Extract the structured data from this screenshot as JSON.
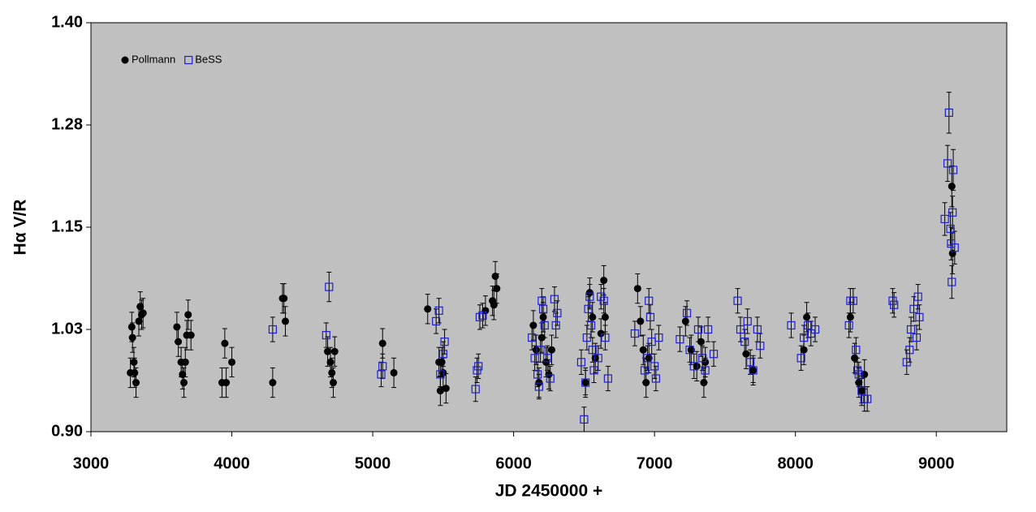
{
  "chart_data": {
    "type": "scatter",
    "xlabel": "JD 2450000 +",
    "ylabel": "Hα V/R",
    "xlim": [
      3000,
      9500
    ],
    "xticks": [
      3000,
      4000,
      5000,
      6000,
      7000,
      8000,
      9000
    ],
    "ylim": [
      0.9,
      1.4
    ],
    "yticks": [
      {
        "value": 0.9,
        "label": "0.90"
      },
      {
        "value": 1.025,
        "label": "1.03"
      },
      1.15,
      {
        "value": 1.275,
        "label": "1.28"
      },
      {
        "value": 1.4,
        "label": "1.40"
      }
    ],
    "legend": "upper left",
    "background": "#c0c0c0",
    "series": [
      {
        "name": "Pollmann",
        "color": "#000000",
        "marker": "filled-circle",
        "x": [
          3280,
          3290,
          3295,
          3305,
          3310,
          3320,
          3340,
          3350,
          3360,
          3370,
          3610,
          3620,
          3640,
          3650,
          3660,
          3670,
          3680,
          3690,
          3710,
          3930,
          3950,
          3960,
          4000,
          4290,
          4360,
          4370,
          4380,
          4680,
          4700,
          4710,
          4720,
          4730,
          5070,
          5150,
          5390,
          5470,
          5480,
          5490,
          5500,
          5520,
          5800,
          5850,
          5860,
          5870,
          5880,
          6140,
          6160,
          6180,
          6200,
          6210,
          6230,
          6250,
          6270,
          6510,
          6540,
          6560,
          6580,
          6620,
          6640,
          6650,
          6880,
          6900,
          6920,
          6940,
          6960,
          7220,
          7260,
          7300,
          7330,
          7350,
          7360,
          7650,
          7700,
          8060,
          8080,
          8390,
          8420,
          8450,
          8470,
          8490,
          9110,
          9115
        ],
        "values": [
          0.972,
          1.028,
          1.015,
          0.985,
          0.972,
          0.96,
          1.035,
          1.053,
          1.043,
          1.045,
          1.028,
          1.01,
          0.985,
          0.97,
          0.96,
          0.985,
          1.018,
          1.043,
          1.018,
          0.96,
          1.008,
          0.96,
          0.985,
          0.96,
          1.063,
          1.063,
          1.035,
          0.998,
          0.985,
          0.972,
          0.96,
          0.998,
          1.008,
          0.972,
          1.05,
          0.985,
          0.95,
          0.985,
          0.972,
          0.953,
          1.048,
          1.06,
          1.055,
          1.09,
          1.075,
          1.03,
          1.0,
          0.96,
          1.015,
          1.04,
          0.985,
          0.97,
          1.0,
          0.96,
          1.07,
          1.04,
          0.99,
          1.02,
          1.085,
          1.04,
          1.075,
          1.035,
          1.0,
          0.96,
          0.99,
          1.035,
          1.0,
          0.98,
          1.01,
          0.96,
          0.985,
          0.995,
          0.975,
          1.0,
          1.04,
          1.04,
          0.99,
          0.96,
          0.95,
          0.97,
          1.2,
          1.118
        ],
        "errors": [
          0.018,
          0.018,
          0.018,
          0.018,
          0.018,
          0.018,
          0.018,
          0.018,
          0.018,
          0.018,
          0.018,
          0.018,
          0.018,
          0.018,
          0.018,
          0.018,
          0.018,
          0.018,
          0.018,
          0.018,
          0.018,
          0.018,
          0.018,
          0.018,
          0.018,
          0.018,
          0.018,
          0.018,
          0.018,
          0.018,
          0.018,
          0.018,
          0.018,
          0.018,
          0.018,
          0.018,
          0.018,
          0.018,
          0.018,
          0.018,
          0.018,
          0.018,
          0.018,
          0.018,
          0.018,
          0.018,
          0.018,
          0.018,
          0.018,
          0.018,
          0.018,
          0.018,
          0.018,
          0.018,
          0.018,
          0.018,
          0.018,
          0.018,
          0.018,
          0.018,
          0.018,
          0.018,
          0.018,
          0.018,
          0.018,
          0.018,
          0.018,
          0.018,
          0.018,
          0.018,
          0.018,
          0.018,
          0.018,
          0.018,
          0.018,
          0.018,
          0.018,
          0.018,
          0.018,
          0.018,
          0.025,
          0.025
        ]
      },
      {
        "name": "BeSS",
        "color": "#1f1fd0",
        "marker": "open-square",
        "x": [
          4290,
          4670,
          4690,
          5060,
          5070,
          5450,
          5470,
          5480,
          5500,
          5510,
          5730,
          5740,
          5750,
          5760,
          5780,
          6130,
          6150,
          6170,
          6180,
          6190,
          6200,
          6210,
          6220,
          6240,
          6260,
          6290,
          6300,
          6310,
          6480,
          6500,
          6510,
          6520,
          6530,
          6540,
          6550,
          6560,
          6570,
          6600,
          6620,
          6640,
          6650,
          6670,
          6860,
          6930,
          6950,
          6960,
          6970,
          6980,
          7000,
          7010,
          7030,
          7180,
          7230,
          7250,
          7280,
          7310,
          7340,
          7360,
          7380,
          7420,
          7590,
          7610,
          7640,
          7660,
          7680,
          7700,
          7730,
          7750,
          7970,
          8040,
          8060,
          8090,
          8110,
          8140,
          8380,
          8390,
          8410,
          8430,
          8440,
          8450,
          8470,
          8490,
          8510,
          8690,
          8700,
          8790,
          8810,
          8820,
          8840,
          8860,
          8870,
          8880,
          9060,
          9080,
          9090,
          9100,
          9105,
          9110,
          9115,
          9120,
          9130
        ],
        "values": [
          1.025,
          1.018,
          1.077,
          0.97,
          0.98,
          1.035,
          1.048,
          0.97,
          0.995,
          1.01,
          0.952,
          0.975,
          0.98,
          1.04,
          1.042,
          1.015,
          0.99,
          0.97,
          0.955,
          1.0,
          1.06,
          1.05,
          1.03,
          0.99,
          0.965,
          1.062,
          1.03,
          1.045,
          0.985,
          0.915,
          0.96,
          1.015,
          1.05,
          1.065,
          1.03,
          1.0,
          0.975,
          0.99,
          1.065,
          1.06,
          1.015,
          0.965,
          1.02,
          0.975,
          0.99,
          1.06,
          1.04,
          1.01,
          0.98,
          0.965,
          1.015,
          1.013,
          1.045,
          1.0,
          0.98,
          1.025,
          0.99,
          0.975,
          1.025,
          0.995,
          1.06,
          1.025,
          1.01,
          1.035,
          0.985,
          0.975,
          1.025,
          1.005,
          1.03,
          0.99,
          1.015,
          1.03,
          1.02,
          1.025,
          1.03,
          1.06,
          1.06,
          1.0,
          0.975,
          0.97,
          0.95,
          0.94,
          0.94,
          1.06,
          1.055,
          0.985,
          1.0,
          1.025,
          1.05,
          1.015,
          1.065,
          1.04,
          1.16,
          1.228,
          1.29,
          1.148,
          1.13,
          1.083,
          1.168,
          1.22,
          1.125
        ],
        "errors": [
          0.015,
          0.015,
          0.018,
          0.015,
          0.015,
          0.015,
          0.015,
          0.015,
          0.015,
          0.015,
          0.015,
          0.015,
          0.015,
          0.015,
          0.015,
          0.015,
          0.015,
          0.015,
          0.015,
          0.015,
          0.015,
          0.015,
          0.015,
          0.015,
          0.015,
          0.015,
          0.015,
          0.015,
          0.015,
          0.015,
          0.015,
          0.015,
          0.015,
          0.015,
          0.015,
          0.015,
          0.015,
          0.015,
          0.015,
          0.015,
          0.015,
          0.015,
          0.015,
          0.015,
          0.015,
          0.015,
          0.015,
          0.015,
          0.015,
          0.015,
          0.015,
          0.015,
          0.015,
          0.015,
          0.015,
          0.015,
          0.015,
          0.015,
          0.015,
          0.015,
          0.015,
          0.015,
          0.015,
          0.015,
          0.015,
          0.015,
          0.015,
          0.015,
          0.015,
          0.015,
          0.015,
          0.015,
          0.015,
          0.015,
          0.015,
          0.015,
          0.015,
          0.015,
          0.015,
          0.015,
          0.015,
          0.015,
          0.015,
          0.015,
          0.015,
          0.015,
          0.015,
          0.015,
          0.015,
          0.015,
          0.015,
          0.015,
          0.02,
          0.022,
          0.025,
          0.02,
          0.02,
          0.02,
          0.02,
          0.025,
          0.02
        ]
      }
    ]
  }
}
